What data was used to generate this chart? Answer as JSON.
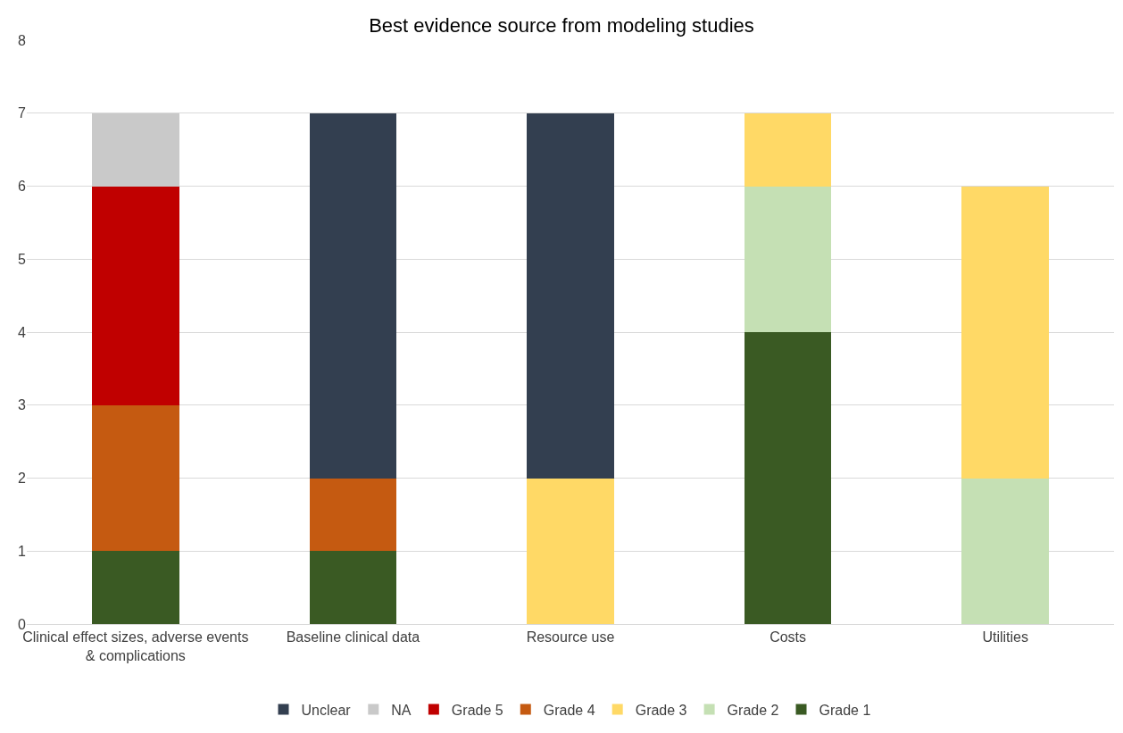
{
  "chart_data": {
    "type": "bar",
    "title": "Best evidence source from modeling studies",
    "categories": [
      "Clinical effect sizes, adverse events & complications",
      "Baseline clinical data",
      "Resource use",
      "Costs",
      "Utilities"
    ],
    "stacked": true,
    "series": [
      {
        "name": "Grade 1",
        "color": "#3a5a23",
        "values": [
          1,
          1,
          0,
          4,
          0
        ]
      },
      {
        "name": "Grade 2",
        "color": "#c5e0b4",
        "values": [
          0,
          0,
          0,
          2,
          2
        ]
      },
      {
        "name": "Grade 3",
        "color": "#ffd966",
        "values": [
          0,
          0,
          2,
          1,
          4
        ]
      },
      {
        "name": "Grade 4",
        "color": "#c55a11",
        "values": [
          2,
          1,
          0,
          0,
          0
        ]
      },
      {
        "name": "Grade 5",
        "color": "#c00000",
        "values": [
          3,
          0,
          0,
          0,
          0
        ]
      },
      {
        "name": "NA",
        "color": "#c9c9c9",
        "values": [
          1,
          0,
          0,
          0,
          0
        ]
      },
      {
        "name": "Unclear",
        "color": "#333f50",
        "values": [
          0,
          5,
          5,
          0,
          0
        ]
      }
    ],
    "ylim": [
      0,
      8
    ],
    "yticks": [
      0,
      1,
      2,
      3,
      4,
      5,
      6,
      7,
      8
    ],
    "grid": "y",
    "legend": "bottom"
  }
}
